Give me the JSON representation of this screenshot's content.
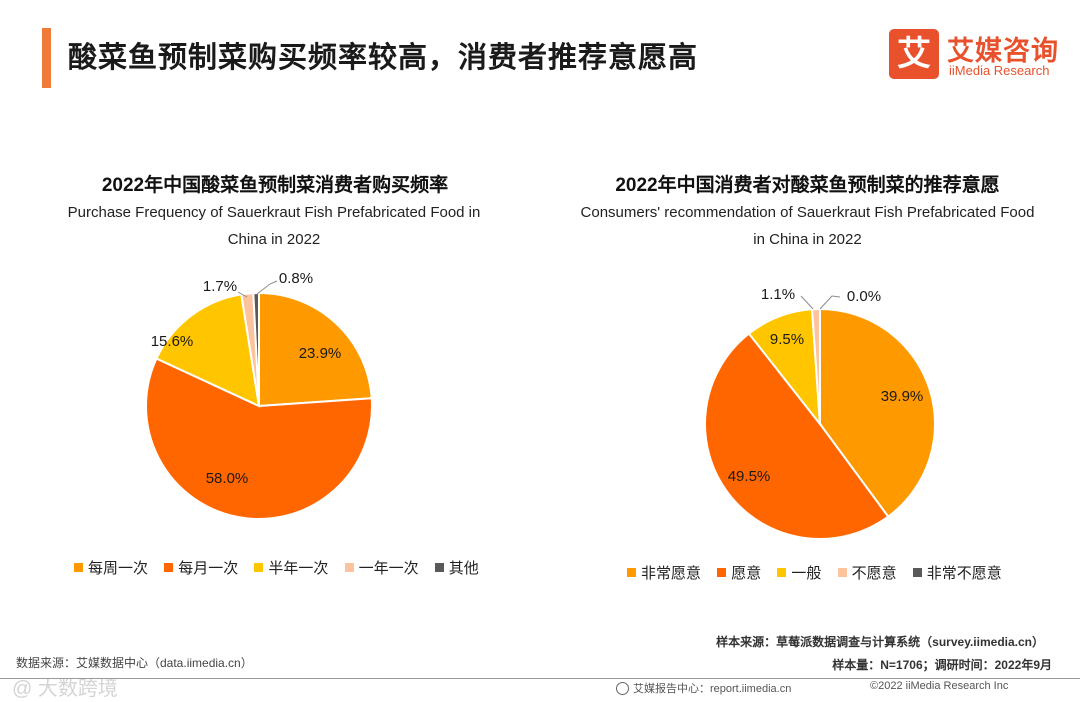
{
  "header": {
    "title": "酸菜鱼预制菜购买频率较高，消费者推荐意愿高",
    "logo_mark": "艾",
    "logo_cn": "艾媒咨询",
    "logo_en": "iiMedia Research"
  },
  "colors": [
    "#ff9900",
    "#ff6600",
    "#ffc600",
    "#fdc39c",
    "#595959"
  ],
  "chart_data": [
    {
      "type": "pie",
      "title_cn": "2022年中国酸菜鱼预制菜消费者购买频率",
      "title_en": "Purchase Frequency of Sauerkraut Fish Prefabricated Food in China in 2022",
      "categories": [
        "每周一次",
        "每月一次",
        "半年一次",
        "一年一次",
        "其他"
      ],
      "values": [
        23.9,
        58.0,
        15.6,
        1.7,
        0.8
      ],
      "labels": [
        "23.9%",
        "58.0%",
        "15.6%",
        "1.7%",
        "0.8%"
      ],
      "legend_position": "bottom"
    },
    {
      "type": "pie",
      "title_cn": "2022年中国消费者对酸菜鱼预制菜的推荐意愿",
      "title_en": "Consumers' recommendation of Sauerkraut Fish Prefabricated Food in China in 2022",
      "categories": [
        "非常愿意",
        "愿意",
        "一般",
        "不愿意",
        "非常不愿意"
      ],
      "values": [
        39.9,
        49.5,
        9.5,
        1.1,
        0.0
      ],
      "labels": [
        "39.9%",
        "49.5%",
        "9.5%",
        "1.1%",
        "0.0%"
      ],
      "legend_position": "bottom"
    }
  ],
  "footer": {
    "source_left": "数据来源：艾媒数据中心（data.iimedia.cn）",
    "sample_source": "样本来源：草莓派数据调查与计算系统（survey.iimedia.cn）",
    "sample_size": "样本量：N=1706；调研时间：2022年9月",
    "report_center": "艾媒报告中心：report.iimedia.cn",
    "copyright": "©2022  iiMedia Research  Inc",
    "watermark": "@ 大数跨境"
  }
}
